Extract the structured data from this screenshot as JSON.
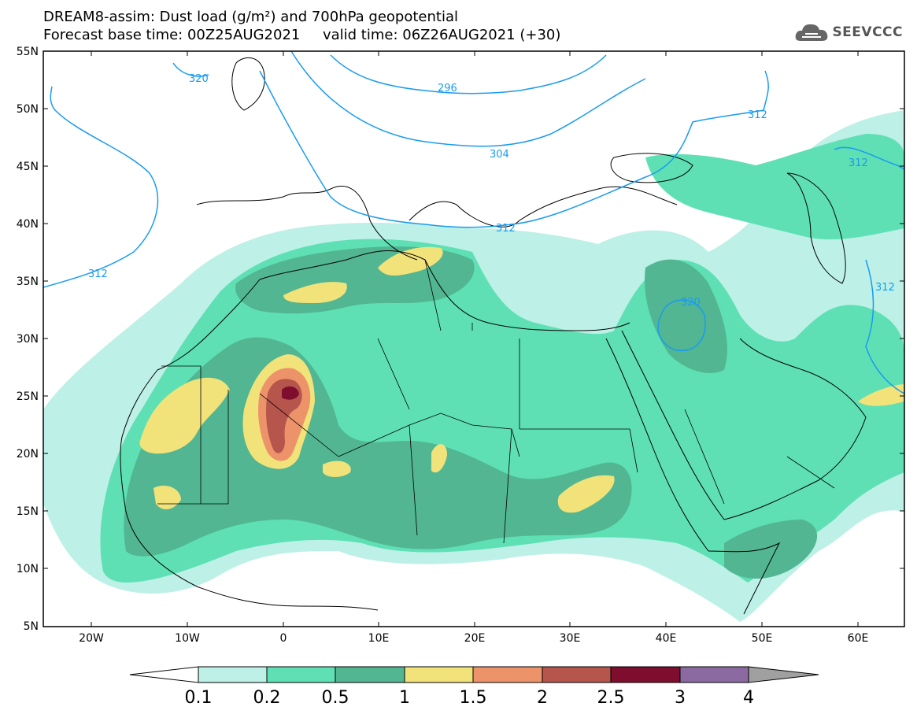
{
  "title": {
    "line1": "DREAM8-assim: Dust load (g/m²) and 700hPa geopotential",
    "line2_base": "Forecast base time: 00Z25AUG2021",
    "line2_valid": "valid time: 06Z26AUG2021 (+30)"
  },
  "logo_text": "SEEVCCC",
  "axes": {
    "lat_labels": [
      "55N",
      "50N",
      "45N",
      "40N",
      "35N",
      "30N",
      "25N",
      "20N",
      "15N",
      "10N",
      "5N"
    ],
    "lon_labels": [
      "20W",
      "10W",
      "0",
      "10E",
      "20E",
      "30E",
      "40E",
      "50E",
      "60E"
    ]
  },
  "contour_labels": [
    "320",
    "296",
    "304",
    "312",
    "312",
    "312",
    "312",
    "320",
    "312"
  ],
  "colorbar": {
    "labels": [
      "0.1",
      "0.2",
      "0.5",
      "1",
      "1.5",
      "2",
      "2.5",
      "3",
      "4"
    ],
    "colors": [
      "#ffffff",
      "#bdf0e6",
      "#5ee0b4",
      "#52b692",
      "#f2e27a",
      "#ec936a",
      "#b5554c",
      "#7e0d2e",
      "#8b6aa1",
      "#a0a0a0"
    ]
  },
  "colors": {
    "contour": "#1a9bef",
    "coast": "#000000"
  }
}
